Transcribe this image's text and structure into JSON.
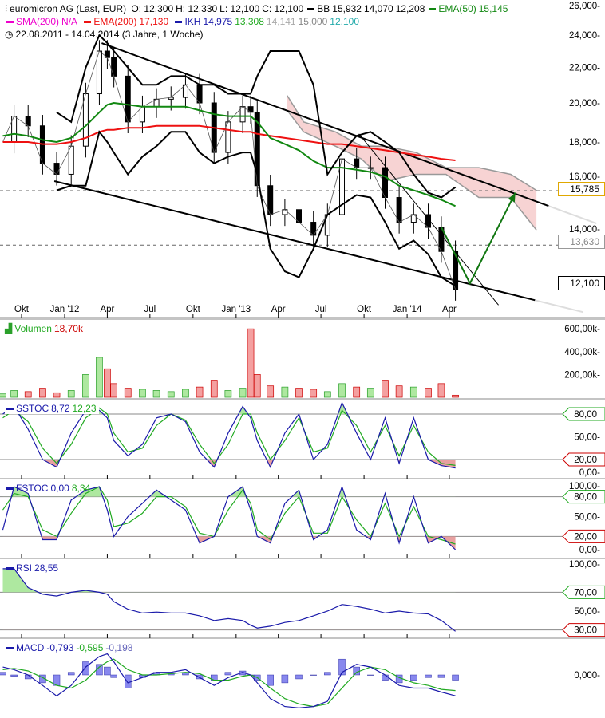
{
  "header": {
    "instrument": "euromicron AG (Last, EUR)",
    "open": "O: 12,300",
    "high": "H: 12,330",
    "low": "L: 12,100",
    "close": "C: 12,100",
    "bb_label": "BB",
    "bb_values": [
      "15,932",
      "14,070",
      "12,208"
    ],
    "ema50_label": "EMA(50)",
    "ema50_value": "15,145",
    "sma200_label": "SMA(200)",
    "sma200_value": "N/A",
    "ema200_label": "EMA(200)",
    "ema200_value": "17,130",
    "ikh_label": "IKH",
    "ikh_values": [
      "14,975",
      "13,308",
      "14,141",
      "15,000",
      "12,100"
    ],
    "range": "22.08.2011 - 14.04.2014 (3 Jahre, 1 Woche)",
    "icons": [
      "candlestick-icon",
      "clock-icon"
    ]
  },
  "colors": {
    "up": "#2aa02a",
    "down": "#cc0000",
    "ema200": "#ee1111",
    "ema50": "#118811",
    "bb": "#000000",
    "ikh": "#1a1aaa",
    "cloud": "#f7d3d3",
    "k_line": "#1a1aaa",
    "d_line": "#22aa22",
    "hist": "#8888ee",
    "tag_price": "#e0a800",
    "tag_gray": "#888888"
  },
  "price_axis": {
    "scale": "log",
    "ticks": [
      "26,000",
      "24,000",
      "22,000",
      "20,000",
      "18,000",
      "16,000",
      "14,000"
    ],
    "tick_values": [
      26,
      24,
      22,
      20,
      18,
      16,
      14
    ],
    "tags": [
      {
        "label": "15,785",
        "value": 15.785,
        "dashed": true
      },
      {
        "label": "13,630",
        "value": 13.63,
        "dashed": true
      },
      {
        "label": "12,100",
        "value": 12.1,
        "dashed": false
      }
    ]
  },
  "time_axis": {
    "ticks": [
      "Okt",
      "Jan '12",
      "Apr",
      "Jul",
      "Okt",
      "Jan '13",
      "Apr",
      "Jul",
      "Okt",
      "Jan '14",
      "Apr"
    ],
    "tick_dates": [
      "2011-10-01",
      "2012-01-01",
      "2012-04-01",
      "2012-07-01",
      "2012-10-01",
      "2013-01-01",
      "2013-04-01",
      "2013-07-01",
      "2013-10-01",
      "2014-01-01",
      "2014-04-01"
    ]
  },
  "panels": {
    "volume": {
      "label": "Volumen",
      "value": "18,70k",
      "ticks": [
        "600,00k",
        "400,00k",
        "200,00k"
      ],
      "tick_values": [
        600,
        400,
        200
      ]
    },
    "sstoc": {
      "label": "SSTOC",
      "k": "8,72",
      "d": "12,23",
      "ticks": [
        "80,00",
        "50,00",
        "20,00",
        "0,00"
      ],
      "tick_values": [
        80,
        50,
        20,
        0
      ]
    },
    "fstoc": {
      "label": "FSTOC",
      "k": "0,00",
      "d": "8,34",
      "ticks": [
        "100,00",
        "80,00",
        "50,00",
        "20,00",
        "0,00"
      ],
      "tick_values": [
        100,
        80,
        50,
        20,
        0
      ]
    },
    "rsi": {
      "label": "RSI",
      "value": "28,55",
      "ticks": [
        "100,00",
        "70,00",
        "50,00",
        "30,00"
      ],
      "tick_values": [
        100,
        70,
        50,
        30
      ]
    },
    "macd": {
      "label": "MACD",
      "macd": "-0,793",
      "signal": "-0,595",
      "hist": "-0,198",
      "ticks": [
        "0,000"
      ],
      "tick_values": [
        0
      ]
    }
  },
  "chart_data": {
    "type": "line",
    "title": "euromicron AG (Last, EUR)",
    "dates": [
      "2011-08-22",
      "2011-09-15",
      "2011-10-15",
      "2011-11-15",
      "2011-12-15",
      "2012-01-15",
      "2012-02-15",
      "2012-03-15",
      "2012-04-01",
      "2012-04-15",
      "2012-05-15",
      "2012-06-15",
      "2012-07-15",
      "2012-08-15",
      "2012-09-15",
      "2012-10-15",
      "2012-11-15",
      "2012-12-15",
      "2013-01-15",
      "2013-02-01",
      "2013-02-15",
      "2013-03-15",
      "2013-04-15",
      "2013-05-15",
      "2013-06-15",
      "2013-07-15",
      "2013-08-15",
      "2013-09-15",
      "2013-10-15",
      "2013-11-15",
      "2013-12-15",
      "2014-01-15",
      "2014-02-15",
      "2014-03-15",
      "2014-04-14"
    ],
    "close": [
      18.0,
      19.3,
      18.8,
      17.0,
      16.5,
      17.8,
      20.5,
      23.0,
      22.6,
      21.5,
      19.0,
      19.8,
      20.2,
      20.3,
      21.0,
      20.0,
      17.5,
      19.0,
      19.8,
      19.5,
      16.0,
      14.8,
      15.0,
      14.5,
      14.0,
      14.8,
      17.2,
      16.8,
      16.8,
      15.5,
      14.5,
      14.8,
      14.3,
      13.4,
      12.1
    ],
    "ema200": [
      18.0,
      18.0,
      18.0,
      17.9,
      17.9,
      18.0,
      18.2,
      18.5,
      18.6,
      18.6,
      18.7,
      18.7,
      18.8,
      18.8,
      18.8,
      18.8,
      18.7,
      18.6,
      18.5,
      18.5,
      18.4,
      18.3,
      18.2,
      18.1,
      18.0,
      17.9,
      17.9,
      17.8,
      17.7,
      17.6,
      17.5,
      17.4,
      17.3,
      17.2,
      17.13
    ],
    "ema50": [
      18.3,
      18.4,
      18.3,
      18.1,
      18.0,
      18.2,
      18.8,
      19.5,
      19.9,
      20.0,
      19.9,
      19.8,
      19.8,
      19.8,
      19.8,
      19.6,
      19.4,
      19.3,
      19.3,
      19.3,
      19.0,
      18.2,
      17.9,
      17.6,
      17.1,
      16.8,
      16.8,
      16.7,
      16.6,
      16.4,
      16.0,
      15.8,
      15.6,
      15.4,
      15.145
    ],
    "bb_upper": [
      null,
      null,
      null,
      null,
      19.5,
      19.0,
      22.0,
      24.0,
      23.5,
      23.0,
      22.0,
      21.0,
      21.0,
      21.5,
      21.5,
      21.0,
      21.0,
      20.5,
      20.5,
      20.5,
      21.5,
      23.0,
      23.0,
      23.0,
      21.0,
      16.5,
      17.5,
      18.3,
      18.5,
      18.0,
      17.5,
      16.5,
      15.7,
      15.5,
      15.932
    ],
    "bb_lower": [
      null,
      null,
      null,
      null,
      15.8,
      16.0,
      16.0,
      18.5,
      18.0,
      17.5,
      16.5,
      17.3,
      17.8,
      18.5,
      18.5,
      17.5,
      17.0,
      17.3,
      17.5,
      17.5,
      16.5,
      13.5,
      12.7,
      12.5,
      13.5,
      14.8,
      15.2,
      15.6,
      15.5,
      14.5,
      13.5,
      13.8,
      13.3,
      12.5,
      12.208
    ],
    "cloud": {
      "dates": [
        "2013-04-20",
        "2013-05-25",
        "2013-08-01",
        "2013-09-25",
        "2013-11-15",
        "2014-01-20",
        "2014-03-25",
        "2014-06-03",
        "2014-08-10",
        "2014-10-04"
      ],
      "upper": [
        20.4,
        19.0,
        18.5,
        17.8,
        17.8,
        17.5,
        16.8,
        16.8,
        16.5,
        15.8
      ],
      "lower": [
        19.6,
        18.5,
        17.8,
        17.2,
        16.2,
        16.5,
        16.5,
        15.5,
        15.5,
        14.2
      ]
    },
    "trendlines": [
      {
        "from": [
          "2012-03-20",
          23.5
        ],
        "to": [
          "2014-10-30",
          15.15
        ]
      },
      {
        "from": [
          "2011-12-10",
          16.2
        ],
        "to": [
          "2014-10-01",
          11.75
        ]
      },
      {
        "from": [
          "2013-09-20",
          18.4
        ],
        "to": [
          "2014-07-15",
          11.6
        ]
      }
    ],
    "projection_arrow": {
      "dates": [
        "2014-03-15",
        "2014-05-15",
        "2014-08-20"
      ],
      "values": [
        14.3,
        12.3,
        15.7
      ]
    },
    "volume_k": [
      30,
      60,
      50,
      80,
      40,
      60,
      200,
      350,
      250,
      120,
      80,
      70,
      60,
      50,
      70,
      90,
      150,
      60,
      80,
      600,
      200,
      100,
      90,
      80,
      70,
      50,
      120,
      90,
      80,
      150,
      100,
      90,
      80,
      120,
      18.7
    ],
    "sstoc_k": [
      80,
      90,
      60,
      20,
      10,
      55,
      85,
      85,
      75,
      45,
      25,
      40,
      75,
      80,
      70,
      30,
      10,
      55,
      90,
      75,
      45,
      10,
      55,
      80,
      20,
      40,
      95,
      55,
      20,
      75,
      15,
      75,
      20,
      12,
      8.72
    ],
    "sstoc_d": [
      75,
      85,
      70,
      35,
      15,
      40,
      75,
      88,
      80,
      55,
      30,
      35,
      65,
      80,
      72,
      40,
      15,
      40,
      80,
      80,
      55,
      20,
      45,
      75,
      30,
      35,
      85,
      65,
      30,
      65,
      25,
      65,
      30,
      15,
      12.23
    ],
    "fstoc_k": [
      30,
      95,
      85,
      15,
      15,
      75,
      90,
      95,
      60,
      20,
      50,
      70,
      90,
      75,
      60,
      10,
      20,
      80,
      95,
      60,
      20,
      10,
      70,
      90,
      15,
      30,
      95,
      30,
      15,
      85,
      10,
      80,
      10,
      20,
      0
    ],
    "fstoc_d": [
      60,
      85,
      80,
      30,
      20,
      55,
      85,
      95,
      75,
      35,
      40,
      55,
      80,
      80,
      65,
      25,
      20,
      60,
      90,
      70,
      30,
      15,
      55,
      80,
      25,
      25,
      80,
      45,
      20,
      70,
      20,
      65,
      20,
      15,
      8.34
    ],
    "rsi": [
      95,
      95,
      75,
      68,
      66,
      70,
      72,
      70,
      68,
      60,
      52,
      48,
      49,
      48,
      48,
      45,
      40,
      42,
      40,
      35,
      32,
      34,
      38,
      40,
      45,
      50,
      57,
      55,
      52,
      48,
      50,
      48,
      47,
      40,
      28.55
    ],
    "macd": [
      0.3,
      0.2,
      0.0,
      -0.4,
      -0.8,
      -0.4,
      0.3,
      0.7,
      0.8,
      0.5,
      -0.3,
      -0.1,
      0.1,
      0.1,
      0.2,
      -0.1,
      -0.4,
      -0.1,
      0.1,
      0.0,
      -0.3,
      -0.9,
      -1.2,
      -1.25,
      -1.2,
      -1.0,
      0.1,
      0.4,
      0.3,
      0.0,
      -0.4,
      -0.5,
      -0.5,
      -0.65,
      -0.793
    ],
    "macd_signal": [
      0.2,
      0.25,
      0.15,
      -0.1,
      -0.4,
      -0.5,
      -0.2,
      0.3,
      0.5,
      0.6,
      0.2,
      0.0,
      0.0,
      0.05,
      0.1,
      0.05,
      -0.2,
      -0.2,
      -0.05,
      0.0,
      -0.1,
      -0.5,
      -0.9,
      -1.1,
      -1.2,
      -1.1,
      -0.5,
      0.1,
      0.3,
      0.2,
      -0.1,
      -0.3,
      -0.4,
      -0.55,
      -0.595
    ],
    "grid": false,
    "legend": "top-left"
  }
}
